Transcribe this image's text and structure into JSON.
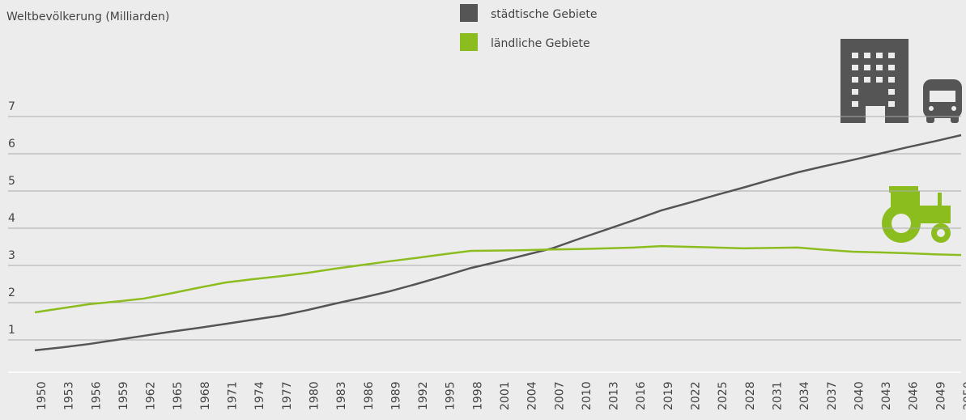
{
  "chart_data": {
    "type": "line",
    "title": "Weltbevölkerung (Milliarden)",
    "categories": [
      "1950",
      "1953",
      "1956",
      "1959",
      "1962",
      "1965",
      "1968",
      "1971",
      "1974",
      "1977",
      "1980",
      "1983",
      "1986",
      "1989",
      "1992",
      "1995",
      "1998",
      "2001",
      "2004",
      "2007",
      "2010",
      "2013",
      "2016",
      "2019",
      "2022",
      "2025",
      "2028",
      "2031",
      "2034",
      "2037",
      "2040",
      "2043",
      "2046",
      "2049",
      "2050"
    ],
    "series": [
      {
        "name": "städtische Gebiete",
        "color": "#555555",
        "values": [
          0.72,
          0.8,
          0.89,
          1.0,
          1.11,
          1.22,
          1.32,
          1.43,
          1.54,
          1.65,
          1.8,
          1.97,
          2.13,
          2.3,
          2.5,
          2.71,
          2.93,
          3.1,
          3.28,
          3.46,
          3.72,
          3.97,
          4.22,
          4.48,
          4.68,
          4.89,
          5.09,
          5.3,
          5.5,
          5.67,
          5.83,
          6.0,
          6.17,
          6.33,
          6.5
        ]
      },
      {
        "name": "ländliche Gebiete",
        "color": "#8cbd1f",
        "values": [
          1.74,
          1.85,
          1.96,
          2.03,
          2.11,
          2.25,
          2.4,
          2.54,
          2.63,
          2.71,
          2.8,
          2.91,
          3.01,
          3.11,
          3.2,
          3.3,
          3.39,
          3.4,
          3.41,
          3.43,
          3.44,
          3.46,
          3.48,
          3.52,
          3.5,
          3.48,
          3.46,
          3.47,
          3.48,
          3.42,
          3.37,
          3.35,
          3.33,
          3.3,
          3.28
        ]
      }
    ],
    "ylim": [
      0,
      8
    ],
    "yticks": [
      1,
      2,
      3,
      4,
      5,
      6,
      7
    ],
    "grid": true
  }
}
